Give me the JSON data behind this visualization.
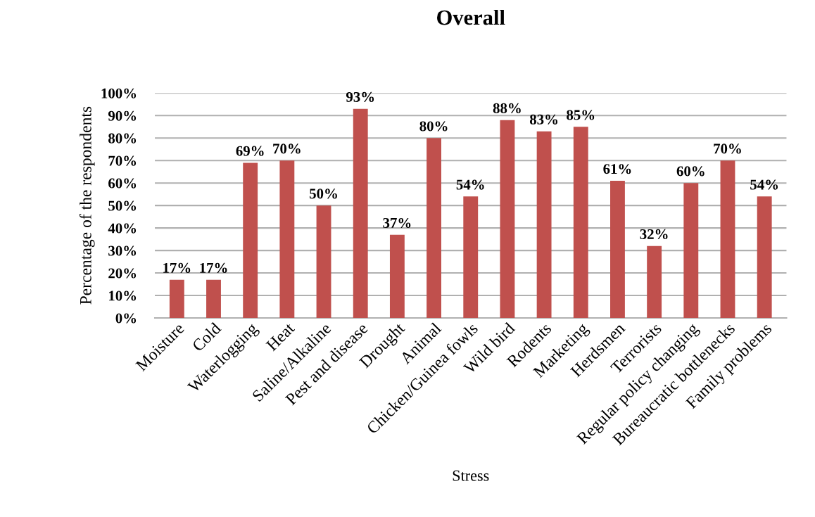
{
  "chart_data": {
    "type": "bar",
    "title": "Overall",
    "xlabel": "Stress",
    "ylabel": "Percentage of the respondents",
    "categories": [
      "Moisture",
      "Cold",
      "Waterlogging",
      "Heat",
      "Saline/Alkaline",
      "Pest and disease",
      "Drought",
      "Animal",
      "Chicken/Guinea fowls",
      "Wild bird",
      "Rodents",
      "Marketing",
      "Herdsmen",
      "Terrorists",
      "Regular policy changing",
      "Bureaucratic bottlenecks",
      "Family problems"
    ],
    "values": [
      17,
      17,
      69,
      70,
      50,
      93,
      37,
      80,
      54,
      88,
      83,
      85,
      61,
      32,
      60,
      70,
      54
    ],
    "value_labels": [
      "17%",
      "17%",
      "69%",
      "70%",
      "50%",
      "93%",
      "37%",
      "80%",
      "54%",
      "88%",
      "83%",
      "85%",
      "61%",
      "32%",
      "60%",
      "70%",
      "54%"
    ],
    "color": "#c0504d",
    "ylim": [
      0,
      100
    ],
    "yticks": [
      {
        "value": 0,
        "label": "0%"
      },
      {
        "value": 10,
        "label": "10%"
      },
      {
        "value": 20,
        "label": "20%"
      },
      {
        "value": 30,
        "label": "30%"
      },
      {
        "value": 40,
        "label": "40%"
      },
      {
        "value": 50,
        "label": "50%"
      },
      {
        "value": 60,
        "label": "60%"
      },
      {
        "value": 70,
        "label": "70%"
      },
      {
        "value": 80,
        "label": "80%"
      },
      {
        "value": 90,
        "label": "90%"
      },
      {
        "value": 100,
        "label": "100%"
      }
    ],
    "grid": "y",
    "legend": false
  }
}
